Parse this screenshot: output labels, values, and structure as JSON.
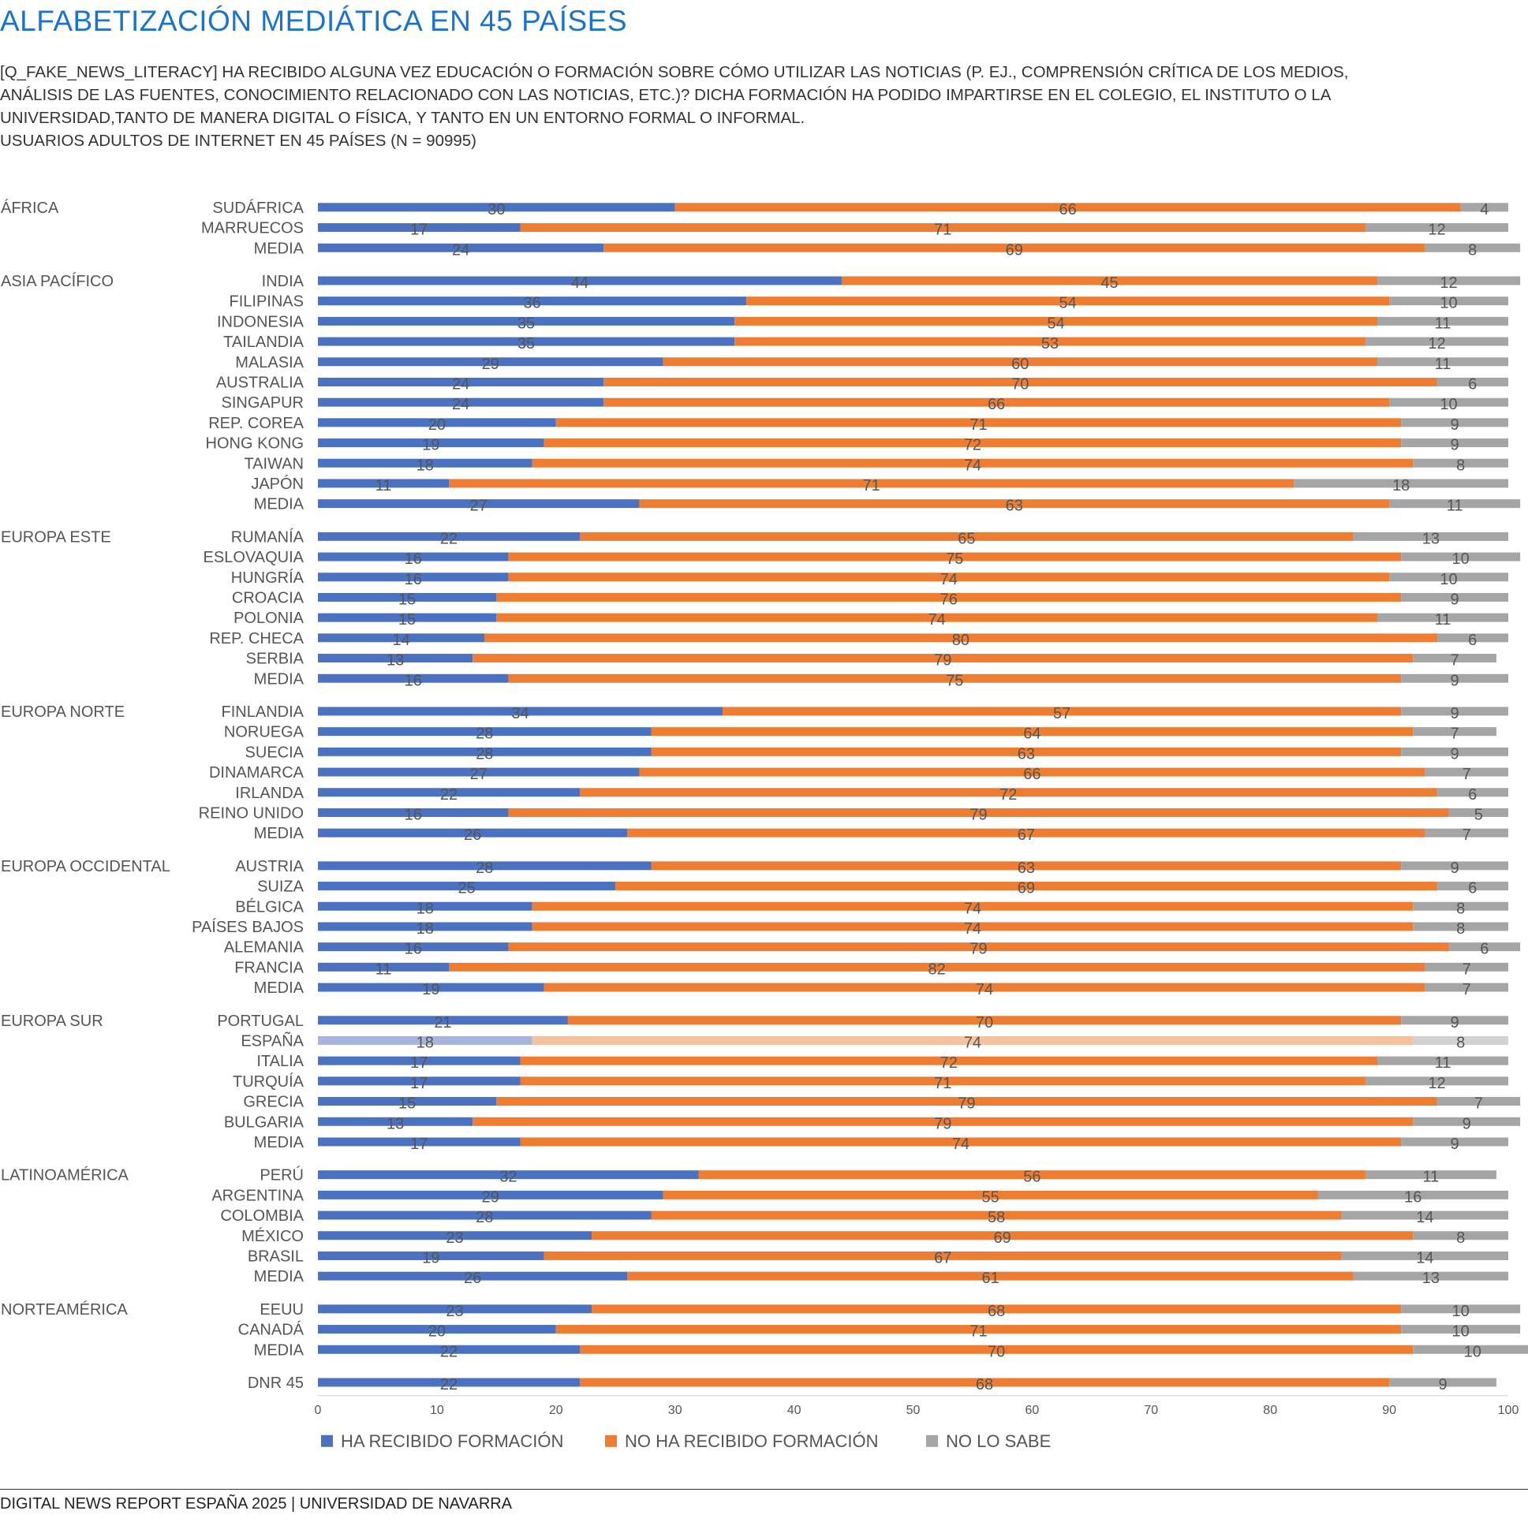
{
  "title": "ALFABETIZACIÓN MEDIÁTICA EN 45 PAÍSES",
  "subtitle_lines": [
    "[Q_FAKE_NEWS_LITERACY] HA RECIBIDO ALGUNA VEZ EDUCACIÓN O FORMACIÓN SOBRE CÓMO UTILIZAR LAS NOTICIAS (P. EJ., COMPRENSIÓN CRÍTICA DE LOS MEDIOS,",
    "ANÁLISIS DE LAS FUENTES, CONOCIMIENTO RELACIONADO CON LAS NOTICIAS, ETC.)? DICHA FORMACIÓN HA PODIDO IMPARTIRSE EN EL COLEGIO, EL INSTITUTO O LA",
    "UNIVERSIDAD,TANTO DE MANERA DIGITAL O FÍSICA, Y TANTO EN UN ENTORNO FORMAL O INFORMAL.",
    "USUARIOS ADULTOS DE INTERNET EN 45 PAÍSES (N = 90995)"
  ],
  "footer": "DIGITAL NEWS REPORT ESPAÑA 2025 | UNIVERSIDAD DE NAVARRA",
  "chart_data": {
    "type": "bar",
    "orientation": "horizontal",
    "stacked": true,
    "xlim": [
      0,
      100
    ],
    "xticks": [
      0,
      10,
      20,
      30,
      40,
      50,
      60,
      70,
      80,
      90,
      100
    ],
    "legend_position": "bottom",
    "colors": {
      "HA RECIBIDO FORMACIÓN": "#4a72c0",
      "NO HA RECIBIDO FORMACIÓN": "#ee7d31",
      "NO LO SABE": "#a5a5a5",
      "highlight": [
        "#a9b4dc",
        "#f3c2a0",
        "#d2d2d2"
      ]
    },
    "series_names": [
      "HA RECIBIDO FORMACIÓN",
      "NO HA RECIBIDO FORMACIÓN",
      "NO LO SABE"
    ],
    "highlight_category": "ESPAÑA",
    "groups": [
      {
        "region": "ÁFRICA",
        "rows": [
          {
            "label": "SUDÁFRICA",
            "values": [
              30,
              66,
              4
            ]
          },
          {
            "label": "MARRUECOS",
            "values": [
              17,
              71,
              12
            ]
          },
          {
            "label": "MEDIA",
            "values": [
              24,
              69,
              8
            ]
          }
        ]
      },
      {
        "region": "ASIA PACÍFICO",
        "rows": [
          {
            "label": "INDIA",
            "values": [
              44,
              45,
              12
            ]
          },
          {
            "label": "FILIPINAS",
            "values": [
              36,
              54,
              10
            ]
          },
          {
            "label": "INDONESIA",
            "values": [
              35,
              54,
              11
            ]
          },
          {
            "label": "TAILANDIA",
            "values": [
              35,
              53,
              12
            ]
          },
          {
            "label": "MALASIA",
            "values": [
              29,
              60,
              11
            ]
          },
          {
            "label": "AUSTRALIA",
            "values": [
              24,
              70,
              6
            ]
          },
          {
            "label": "SINGAPUR",
            "values": [
              24,
              66,
              10
            ]
          },
          {
            "label": "REP. COREA",
            "values": [
              20,
              71,
              9
            ]
          },
          {
            "label": "HONG KONG",
            "values": [
              19,
              72,
              9
            ]
          },
          {
            "label": "TAIWAN",
            "values": [
              18,
              74,
              8
            ]
          },
          {
            "label": "JAPÓN",
            "values": [
              11,
              71,
              18
            ]
          },
          {
            "label": "MEDIA",
            "values": [
              27,
              63,
              11
            ]
          }
        ]
      },
      {
        "region": "EUROPA ESTE",
        "rows": [
          {
            "label": "RUMANÍA",
            "values": [
              22,
              65,
              13
            ]
          },
          {
            "label": "ESLOVAQUIA",
            "values": [
              16,
              75,
              10
            ]
          },
          {
            "label": "HUNGRÍA",
            "values": [
              16,
              74,
              10
            ]
          },
          {
            "label": "CROACIA",
            "values": [
              15,
              76,
              9
            ]
          },
          {
            "label": "POLONIA",
            "values": [
              15,
              74,
              11
            ]
          },
          {
            "label": "REP. CHECA",
            "values": [
              14,
              80,
              6
            ]
          },
          {
            "label": "SERBIA",
            "values": [
              13,
              79,
              7
            ]
          },
          {
            "label": "MEDIA",
            "values": [
              16,
              75,
              9
            ]
          }
        ]
      },
      {
        "region": "EUROPA NORTE",
        "rows": [
          {
            "label": "FINLANDIA",
            "values": [
              34,
              57,
              9
            ]
          },
          {
            "label": "NORUEGA",
            "values": [
              28,
              64,
              7
            ]
          },
          {
            "label": "SUECIA",
            "values": [
              28,
              63,
              9
            ]
          },
          {
            "label": "DINAMARCA",
            "values": [
              27,
              66,
              7
            ]
          },
          {
            "label": "IRLANDA",
            "values": [
              22,
              72,
              6
            ]
          },
          {
            "label": "REINO UNIDO",
            "values": [
              16,
              79,
              5
            ]
          },
          {
            "label": "MEDIA",
            "values": [
              26,
              67,
              7
            ]
          }
        ]
      },
      {
        "region": "EUROPA OCCIDENTAL",
        "rows": [
          {
            "label": "AUSTRIA",
            "values": [
              28,
              63,
              9
            ]
          },
          {
            "label": "SUIZA",
            "values": [
              25,
              69,
              6
            ]
          },
          {
            "label": "BÉLGICA",
            "values": [
              18,
              74,
              8
            ]
          },
          {
            "label": "PAÍSES BAJOS",
            "values": [
              18,
              74,
              8
            ]
          },
          {
            "label": "ALEMANIA",
            "values": [
              16,
              79,
              6
            ]
          },
          {
            "label": "FRANCIA",
            "values": [
              11,
              82,
              7
            ]
          },
          {
            "label": "MEDIA",
            "values": [
              19,
              74,
              7
            ]
          }
        ]
      },
      {
        "region": "EUROPA SUR",
        "rows": [
          {
            "label": "PORTUGAL",
            "values": [
              21,
              70,
              9
            ]
          },
          {
            "label": "ESPAÑA",
            "values": [
              18,
              74,
              8
            ]
          },
          {
            "label": "ITALIA",
            "values": [
              17,
              72,
              11
            ]
          },
          {
            "label": "TURQUÍA",
            "values": [
              17,
              71,
              12
            ]
          },
          {
            "label": "GRECIA",
            "values": [
              15,
              79,
              7
            ]
          },
          {
            "label": "BULGARIA",
            "values": [
              13,
              79,
              9
            ]
          },
          {
            "label": "MEDIA",
            "values": [
              17,
              74,
              9
            ]
          }
        ]
      },
      {
        "region": "LATINOAMÉRICA",
        "rows": [
          {
            "label": "PERÚ",
            "values": [
              32,
              56,
              11
            ]
          },
          {
            "label": "ARGENTINA",
            "values": [
              29,
              55,
              16
            ]
          },
          {
            "label": "COLOMBIA",
            "values": [
              28,
              58,
              14
            ]
          },
          {
            "label": "MÉXICO",
            "values": [
              23,
              69,
              8
            ]
          },
          {
            "label": "BRASIL",
            "values": [
              19,
              67,
              14
            ]
          },
          {
            "label": "MEDIA",
            "values": [
              26,
              61,
              13
            ]
          }
        ]
      },
      {
        "region": "NORTEAMÉRICA",
        "rows": [
          {
            "label": "EEUU",
            "values": [
              23,
              68,
              10
            ]
          },
          {
            "label": "CANADÁ",
            "values": [
              20,
              71,
              10
            ]
          },
          {
            "label": "MEDIA",
            "values": [
              22,
              70,
              10
            ]
          }
        ]
      },
      {
        "region": "",
        "rows": [
          {
            "label": "DNR 45",
            "values": [
              22,
              68,
              9
            ]
          }
        ]
      }
    ]
  }
}
